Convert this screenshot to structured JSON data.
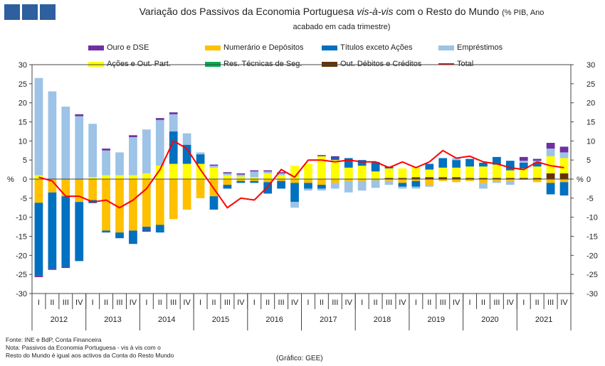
{
  "header": {
    "title_main": "Variação dos Passivos da Economia Portuguesa",
    "title_italic": "vis-à-vis",
    "title_rest": "com o Resto do Mundo",
    "title_note_1": "(% PIB, Ano",
    "title_note_2": "acabado em cada trimestre)"
  },
  "colors": {
    "ouro": "#7030a0",
    "numerario": "#ffc000",
    "titulos": "#0070c0",
    "emprestimos": "#9dc3e6",
    "acoes": "#ffff00",
    "res_tecnicas": "#00b050",
    "out_debitos": "#663300",
    "total": "#ff0000"
  },
  "chart_data": {
    "type": "bar",
    "stacked": true,
    "title": "Variação dos Passivos da Economia Portuguesa vis-à-vis com o Resto do Mundo (% PIB, Ano acabado em cada trimestre)",
    "ylabel": "%",
    "ylim": [
      -30,
      30
    ],
    "yticks": [
      30,
      25,
      20,
      15,
      10,
      5,
      0,
      -5,
      -10,
      -15,
      -20,
      -25,
      -30
    ],
    "quarter_labels": [
      "I",
      "II",
      "III",
      "IV",
      "I",
      "II",
      "III",
      "IV",
      "I",
      "II",
      "III",
      "IV",
      "I",
      "II",
      "III",
      "IV",
      "I",
      "II",
      "III",
      "IV",
      "I",
      "II",
      "III",
      "IV",
      "I",
      "II",
      "III",
      "IV",
      "I",
      "II",
      "III",
      "IV",
      "I",
      "II",
      "III",
      "IV",
      "I",
      "II",
      "III",
      "IV"
    ],
    "years": [
      "2012",
      "2013",
      "2014",
      "2015",
      "2016",
      "2017",
      "2018",
      "2019",
      "2020",
      "2021"
    ],
    "series": [
      {
        "key": "ouro",
        "name": "Ouro e DSE",
        "values": [
          0,
          0,
          0,
          0,
          0,
          0,
          0,
          0,
          0,
          0,
          0,
          0,
          0,
          0,
          0,
          0,
          0,
          0,
          0,
          0,
          0,
          0,
          0,
          0,
          0,
          0,
          0,
          0,
          0,
          0,
          0,
          0,
          0,
          0,
          0,
          0,
          0,
          0,
          0,
          0
        ]
      },
      {
        "key": "numerario",
        "name": "Numerário e Depósitos",
        "values": [
          -6.2,
          -3.5,
          -4.5,
          -6.0,
          -5.5,
          -13.5,
          -14.0,
          -13.5,
          -12.5,
          -12.0,
          -10.5,
          -8.0,
          -5.0,
          -4.5,
          -1.5,
          -0.5,
          -0.5,
          -0.8,
          -0.5,
          -1.0,
          -1.0,
          -1.5,
          -1.0,
          -0.5,
          -0.5,
          -0.3,
          -0.5,
          -1.0,
          -0.5,
          -1.5,
          -0.5,
          -0.8,
          -0.5,
          -1.0,
          -0.5,
          -0.5,
          -0.2,
          -0.8,
          -1.0,
          -0.8
        ]
      },
      {
        "key": "titulos",
        "name": "Títulos exceto Ações",
        "values": [
          -19.0,
          -20.0,
          -18.5,
          -15.5,
          -0.8,
          -0.5,
          -1.5,
          -3.5,
          -1.0,
          -2.0,
          8.5,
          5.0,
          2.5,
          -3.5,
          -1.0,
          -0.5,
          -0.5,
          -3.0,
          -2.0,
          -5.0,
          -1.5,
          -1.0,
          0.5,
          2.5,
          1.5,
          2.5,
          0.5,
          -1.0,
          -1.5,
          1.5,
          2.5,
          2.0,
          2.0,
          1.0,
          2.0,
          2.5,
          1.5,
          1.0,
          -3.0,
          -3.5
        ]
      },
      {
        "key": "emprestimos",
        "name": "Empréstimos",
        "values": [
          25.5,
          23.0,
          19.0,
          16.5,
          14.0,
          6.5,
          6.0,
          10.0,
          11.5,
          12.0,
          4.5,
          3.0,
          0.5,
          0.5,
          0.5,
          0.5,
          1.5,
          0.5,
          0.5,
          -1.5,
          -0.5,
          -0.5,
          -1.5,
          -3.0,
          -2.5,
          -2.0,
          -1.0,
          -0.5,
          -0.5,
          -0.5,
          0,
          0.5,
          0,
          -1.5,
          -0.5,
          -1.0,
          0.5,
          0.5,
          2.0,
          1.5
        ]
      },
      {
        "key": "acoes",
        "name": "Ações e Out. Part.",
        "values": [
          1.0,
          0,
          0,
          0,
          0.5,
          1.0,
          1.0,
          1.0,
          1.5,
          3.5,
          4.0,
          4.0,
          4.0,
          3.0,
          1.0,
          0.7,
          0.5,
          1.5,
          1.0,
          3.5,
          4.0,
          6.0,
          5.0,
          3.0,
          3.5,
          2.0,
          2.5,
          2.5,
          2.5,
          2.0,
          2.5,
          2.5,
          3.0,
          3.0,
          3.5,
          2.0,
          2.5,
          3.0,
          4.5,
          4.0
        ]
      },
      {
        "key": "res_tecnicas",
        "name": "Res. Técnicas de Seg.",
        "values": [
          0,
          0,
          0,
          0,
          0,
          0,
          0,
          0,
          0,
          0,
          0,
          0,
          0,
          0,
          0,
          0,
          0,
          0,
          0,
          0,
          0,
          0,
          0,
          0,
          0,
          0,
          0,
          0,
          0,
          0,
          0,
          0,
          0,
          0,
          0,
          0,
          0,
          0,
          0,
          0
        ]
      },
      {
        "key": "out_debitos",
        "name": "Out. Débitos e Créditos",
        "values": [
          0,
          0,
          0,
          0,
          0,
          0,
          0,
          0,
          0,
          0,
          0,
          0,
          0,
          0,
          0,
          0,
          0,
          0,
          0,
          0,
          0,
          0,
          0,
          0,
          0,
          0,
          0.3,
          0.3,
          0.5,
          0.5,
          0.5,
          0.5,
          0.3,
          0.3,
          0.3,
          0.3,
          0.3,
          0.3,
          1.5,
          1.5
        ]
      }
    ],
    "ouro_top": [
      0,
      0,
      0,
      0.5,
      0,
      0.5,
      0,
      0.5,
      0,
      0.5,
      0.5,
      0,
      0,
      0.3,
      0.3,
      0.3,
      0.3,
      0.3,
      0.3,
      0,
      0,
      0.3,
      0.5,
      0,
      0,
      0,
      0,
      0,
      0,
      0,
      0,
      0,
      0,
      0,
      0,
      0,
      1.0,
      0.5,
      1.5,
      1.5
    ],
    "ouro_neg": [
      0.5,
      0.3,
      0.3,
      0,
      0,
      0,
      0,
      0,
      0.3,
      0,
      0,
      0,
      0,
      0,
      0,
      0,
      0,
      0,
      0,
      0,
      0,
      0,
      0,
      0,
      0,
      0,
      0,
      0,
      0,
      0,
      0,
      0,
      0,
      0,
      0,
      0,
      0,
      0,
      0,
      0
    ],
    "total": [
      0.5,
      -0.5,
      -4.5,
      -4.5,
      -6.0,
      -5.5,
      -7.5,
      -5.5,
      -2.5,
      2.5,
      10.0,
      8.0,
      2.5,
      -2.5,
      -7.5,
      -5.0,
      -5.5,
      -2.0,
      2.5,
      0.5,
      5.0,
      5.0,
      4.5,
      5.0,
      4.5,
      4.5,
      3.0,
      4.5,
      3.0,
      4.5,
      7.5,
      5.5,
      6.0,
      4.5,
      4.0,
      3.0,
      2.5,
      4.5,
      3.5,
      3.0
    ]
  },
  "footer": {
    "source": "Fonte: INE e BdP, Conta Financeira",
    "note_1": "Nota: Passivos da Economia Portuguesa - vis à vis com o",
    "note_2": "Resto do Mundo é igual aos activos da Conta do Resto Mundo",
    "credit": "(Gráfico: GEE)"
  }
}
